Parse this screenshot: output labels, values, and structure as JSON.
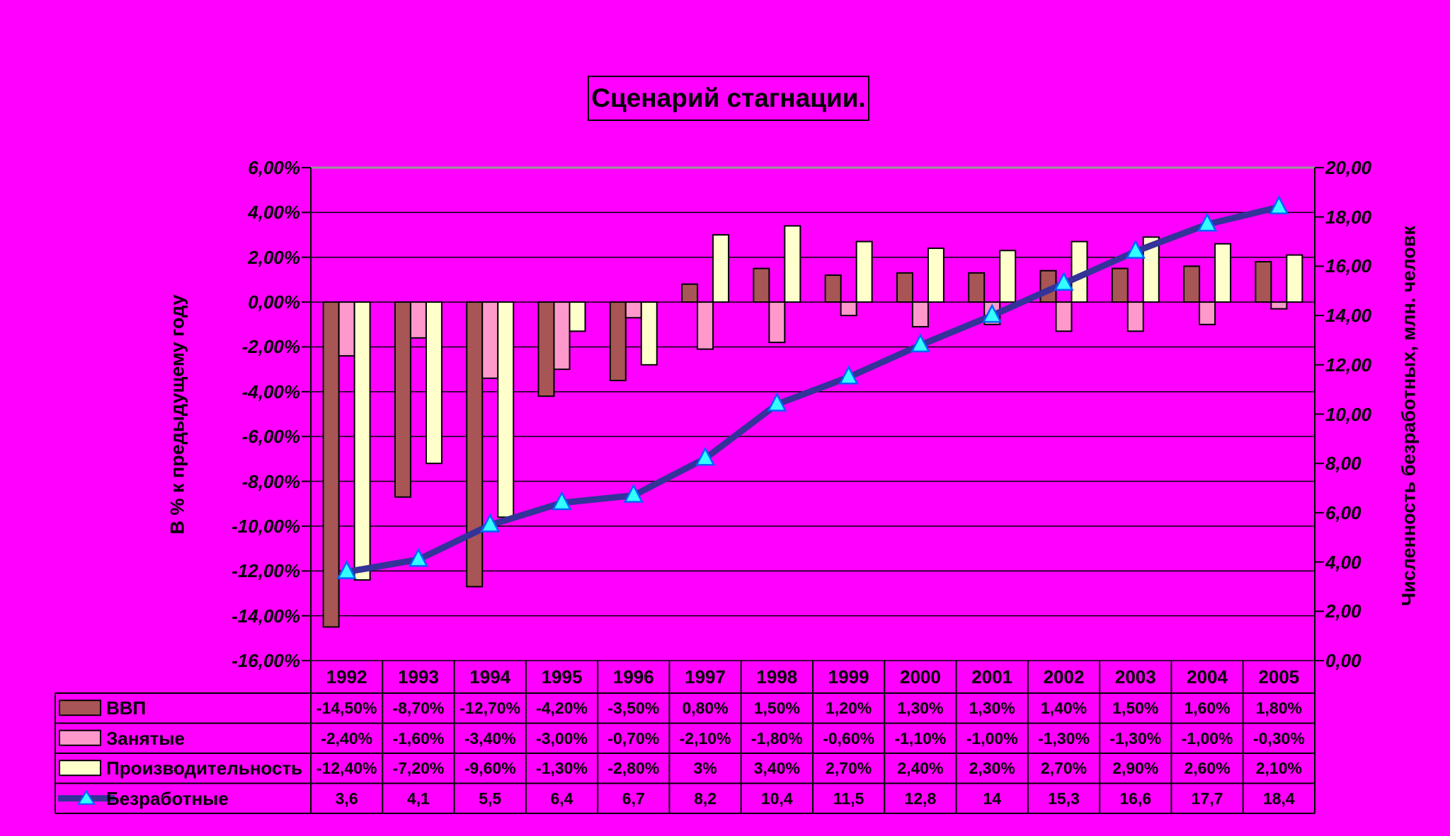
{
  "title": "Сценарий стагнации.",
  "left_axis": {
    "title": "В % к предыдущему году",
    "labels": [
      "6,00%",
      "4,00%",
      "2,00%",
      "0,00%",
      "-2,00%",
      "-4,00%",
      "-6,00%",
      "-8,00%",
      "-10,00%",
      "-12,00%",
      "-14,00%",
      "-16,00%"
    ],
    "min": -16,
    "max": 6,
    "step": 2
  },
  "right_axis": {
    "title": "Численность безработных, млн. человк",
    "labels": [
      "20,00",
      "18,00",
      "16,00",
      "14,00",
      "12,00",
      "10,00",
      "8,00",
      "6,00",
      "4,00",
      "2,00",
      "0,00"
    ],
    "min": 0,
    "max": 20,
    "step": 2
  },
  "colors": {
    "background": "#FF00FF",
    "grid": "#000000",
    "plot_top_border": "#969696",
    "text": "#000000",
    "gdp_bar": "#A85555",
    "employed_bar": "#FF99CC",
    "productivity_bar": "#FFFFCC",
    "unemployed_line": "#333399",
    "marker_fill": "#33FFFF",
    "marker_stroke": "#0066FF"
  },
  "chart_data": {
    "type": "bar+line",
    "categories": [
      "1992",
      "1993",
      "1994",
      "1995",
      "1996",
      "1997",
      "1998",
      "1999",
      "2000",
      "2001",
      "2002",
      "2003",
      "2004",
      "2005"
    ],
    "left_ylim": [
      -16,
      6
    ],
    "right_ylim": [
      0,
      20
    ],
    "grid": "horizontal",
    "legend_position": "data-table-left",
    "series": [
      {
        "name": "ВВП",
        "type": "bar",
        "axis": "left",
        "color": "#A85555",
        "values": [
          -14.5,
          -8.7,
          -12.7,
          -4.2,
          -3.5,
          0.8,
          1.5,
          1.2,
          1.3,
          1.3,
          1.4,
          1.5,
          1.6,
          1.8
        ],
        "labels": [
          "-14,50%",
          "-8,70%",
          "-12,70%",
          "-4,20%",
          "-3,50%",
          "0,80%",
          "1,50%",
          "1,20%",
          "1,30%",
          "1,30%",
          "1,40%",
          "1,50%",
          "1,60%",
          "1,80%"
        ]
      },
      {
        "name": "Занятые",
        "type": "bar",
        "axis": "left",
        "color": "#FF99CC",
        "values": [
          -2.4,
          -1.6,
          -3.4,
          -3.0,
          -0.7,
          -2.1,
          -1.8,
          -0.6,
          -1.1,
          -1.0,
          -1.3,
          -1.3,
          -1.0,
          -0.3
        ],
        "labels": [
          "-2,40%",
          "-1,60%",
          "-3,40%",
          "-3,00%",
          "-0,70%",
          "-2,10%",
          "-1,80%",
          "-0,60%",
          "-1,10%",
          "-1,00%",
          "-1,30%",
          "-1,30%",
          "-1,00%",
          "-0,30%"
        ]
      },
      {
        "name": "Производительность",
        "type": "bar",
        "axis": "left",
        "color": "#FFFFCC",
        "values": [
          -12.4,
          -7.2,
          -9.6,
          -1.3,
          -2.8,
          3,
          3.4,
          2.7,
          2.4,
          2.3,
          2.7,
          2.9,
          2.6,
          2.1
        ],
        "labels": [
          "-12,40%",
          "-7,20%",
          "-9,60%",
          "-1,30%",
          "-2,80%",
          "3%",
          "3,40%",
          "2,70%",
          "2,40%",
          "2,30%",
          "2,70%",
          "2,90%",
          "2,60%",
          "2,10%"
        ]
      },
      {
        "name": "Безработные",
        "type": "line",
        "axis": "right",
        "color": "#333399",
        "marker": "triangle",
        "marker_fill": "#33FFFF",
        "marker_stroke": "#0066FF",
        "values": [
          3.6,
          4.1,
          5.5,
          6.4,
          6.7,
          8.2,
          10.4,
          11.5,
          12.8,
          14,
          15.3,
          16.6,
          17.7,
          18.4
        ],
        "labels": [
          "3,6",
          "4,1",
          "5,5",
          "6,4",
          "6,7",
          "8,2",
          "10,4",
          "11,5",
          "12,8",
          "14",
          "15,3",
          "16,6",
          "17,7",
          "18,4"
        ]
      }
    ]
  }
}
